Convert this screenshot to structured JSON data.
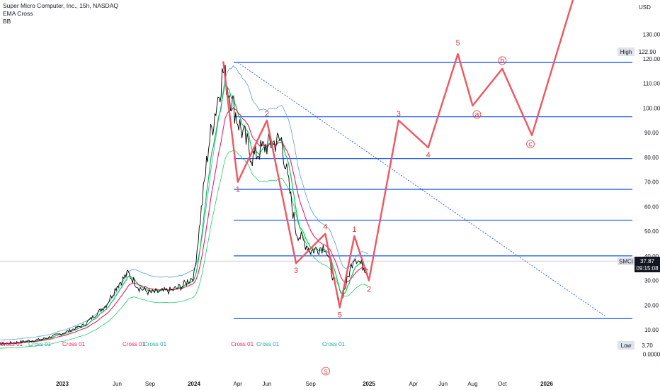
{
  "header": {
    "symbol_line": "Super Micro Computer, Inc., 15h, NASDAQ",
    "indicator_1": "EMA Cross",
    "indicator_2": "BB"
  },
  "currency": "USD",
  "colors": {
    "projection": "#f05660",
    "levels": "#2962ff",
    "bb": "#5b9bd5",
    "ema_fast": "#00c853",
    "ema_slow": "#e91e63",
    "price": "#000000",
    "wave_labels": "#e53935",
    "price_tag_bg": "#131722",
    "label_bg": "#e0e3eb"
  },
  "chart_data": {
    "type": "line",
    "y_axis": {
      "ticks": [
        "130.00",
        "120.00",
        "110.00",
        "100.00",
        "90.00",
        "80.00",
        "70.00",
        "60.00",
        "50.00",
        "40.00",
        "30.00",
        "20.00",
        "10.00",
        "0.0000"
      ],
      "ylim": [
        0,
        140
      ]
    },
    "x_axis": {
      "ticks": [
        "Jun",
        "2023",
        "Jun",
        "Sep",
        "2024",
        "Apr",
        "Jun",
        "Sep",
        "2025",
        "Apr",
        "Jun",
        "Aug",
        "Oct",
        "2026"
      ]
    },
    "labels": {
      "high_text": "High",
      "high_value": "122.90",
      "low_text": "Low",
      "low_value": "3.70",
      "symbol": "SMCI",
      "last_price": "37.87",
      "countdown": "09:15:08"
    },
    "horizontal_levels": [
      118.5,
      96.5,
      79.5,
      67,
      54.5,
      40,
      14.5
    ],
    "trend_line": {
      "from": [
        "2024-04",
        118.5
      ],
      "to": [
        "2026-05",
        15.5
      ]
    },
    "price_series": [
      [
        "2022-05",
        3.9
      ],
      [
        "2022-08",
        4.5
      ],
      [
        "2022-11",
        6
      ],
      [
        "2023-01",
        8.5
      ],
      [
        "2023-03",
        12
      ],
      [
        "2023-05",
        20
      ],
      [
        "2023-06",
        28
      ],
      [
        "2023-07",
        33
      ],
      [
        "2023-08",
        27
      ],
      [
        "2023-09",
        25
      ],
      [
        "2023-10",
        25.5
      ],
      [
        "2023-11",
        26
      ],
      [
        "2023-12",
        28
      ],
      [
        "2024-01",
        32
      ],
      [
        "2024-02",
        85
      ],
      [
        "2024-03",
        115
      ],
      [
        "2024-04",
        95
      ],
      [
        "2024-05",
        80
      ],
      [
        "2024-06",
        85
      ],
      [
        "2024-07",
        87
      ],
      [
        "2024-08",
        50
      ],
      [
        "2024-09",
        42
      ],
      [
        "2024-10",
        44
      ],
      [
        "2024-11",
        20
      ],
      [
        "2024-12",
        40
      ],
      [
        "2025-01",
        33
      ]
    ],
    "wave_projection": {
      "points": [
        [
          "2024-03",
          119
        ],
        [
          "2024-04",
          70
        ],
        [
          "2024-06",
          95
        ],
        [
          "2024-08",
          37
        ],
        [
          "2024-10",
          49
        ],
        [
          "2024-11",
          19
        ],
        [
          "2024-12",
          48
        ],
        [
          "2025-01",
          30
        ],
        [
          "2025-03",
          95
        ],
        [
          "2025-05",
          84
        ],
        [
          "2025-07",
          122
        ],
        [
          "2025-08",
          101
        ],
        [
          "2025-10",
          116
        ],
        [
          "2025-12",
          89
        ],
        [
          "2026-03",
          148
        ]
      ],
      "labels": [
        "1",
        "2",
        "3",
        "4",
        "5",
        "1",
        "2",
        "3",
        "4",
        "5",
        "a",
        "b",
        "c"
      ]
    },
    "cross_labels": [
      "Cross 01",
      "Cross 01",
      "Cross 01",
      "Cross 01",
      "Cross 01",
      "Cross 01",
      "Cross 01",
      "Cross 01"
    ],
    "bottom_marker": "S"
  }
}
